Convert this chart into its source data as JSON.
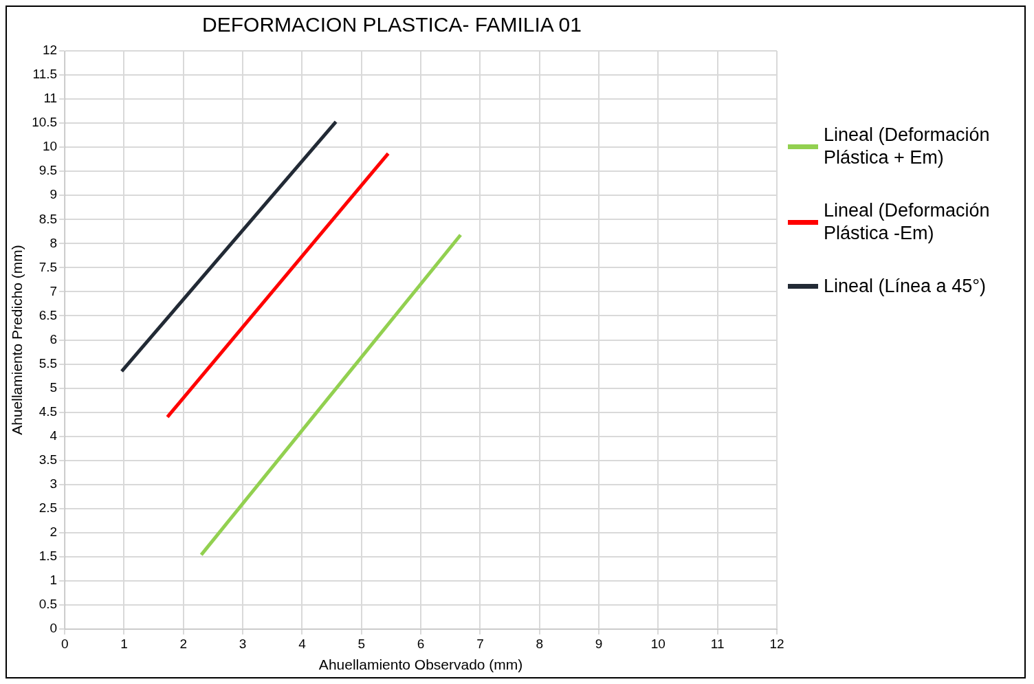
{
  "chart_data": {
    "type": "line",
    "title": "DEFORMACION PLASTICA- FAMILIA 01",
    "xlabel": "Ahuellamiento Observado (mm)",
    "ylabel": "Ahuellamiento Predicho (mm)",
    "series": [
      {
        "name": "Lineal (Deformación Plástica + Em)",
        "color": "#92d050",
        "x": [
          2.3,
          6.67
        ],
        "values": [
          1.54,
          8.18
        ]
      },
      {
        "name": "Lineal (Deformación Plástica -Em)",
        "color": "#ff0000",
        "x": [
          1.73,
          5.45
        ],
        "values": [
          4.4,
          9.87
        ]
      },
      {
        "name": "Lineal (Línea a 45°)",
        "color": "#222a35",
        "x": [
          0.96,
          4.57
        ],
        "values": [
          5.35,
          10.53
        ]
      }
    ],
    "xlim": [
      0,
      12
    ],
    "xticks": [
      0,
      1,
      2,
      3,
      4,
      5,
      6,
      7,
      8,
      9,
      10,
      11,
      12
    ],
    "ylim": [
      0,
      12
    ],
    "yticks": [
      0,
      0.5,
      1,
      1.5,
      2,
      2.5,
      3,
      3.5,
      4,
      4.5,
      5,
      5.5,
      6,
      6.5,
      7,
      7.5,
      8,
      8.5,
      9,
      9.5,
      10,
      10.5,
      11,
      11.5,
      12
    ],
    "grid": true,
    "legend": "right",
    "marker": "none",
    "line_style": "solid"
  }
}
